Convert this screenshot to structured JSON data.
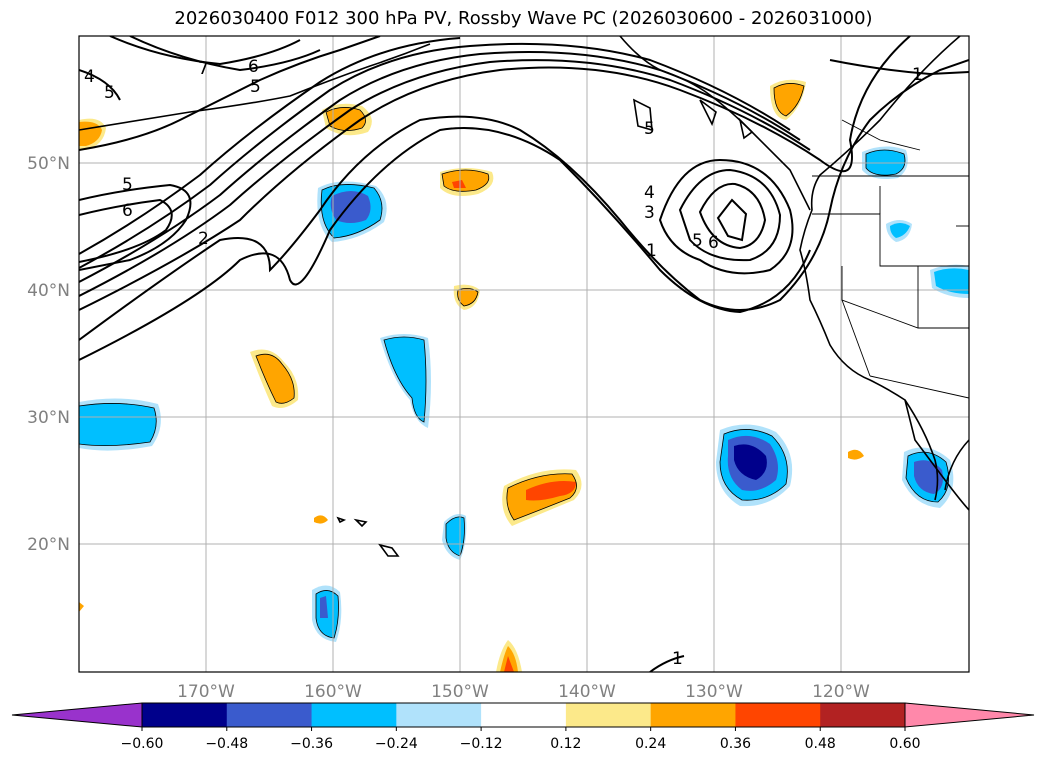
{
  "title": "2026030400 F012 300 hPa PV, Rossby Wave PC (2026030600 - 2026031000)",
  "map": {
    "lon_labels": [
      "170°W",
      "160°W",
      "150°W",
      "140°W",
      "130°W",
      "120°W"
    ],
    "lat_labels": [
      "50°N",
      "40°N",
      "30°N",
      "20°N"
    ],
    "contour_labels": [
      "7",
      "6",
      "5",
      "4",
      "5",
      "5",
      "6",
      "2",
      "4",
      "3",
      "1",
      "5",
      "6",
      "1",
      "1",
      "5"
    ]
  },
  "colorbar": {
    "ticks": [
      "−0.60",
      "−0.48",
      "−0.36",
      "−0.24",
      "−0.12",
      "0.12",
      "0.24",
      "0.36",
      "0.48",
      "0.60"
    ],
    "colors": [
      "#9932cc",
      "#00008b",
      "#3a5bcd",
      "#00bfff",
      "#b0e2fb",
      "#ffffff",
      "#fce98a",
      "#ffa500",
      "#ff4500",
      "#b22222",
      "#ff88aa"
    ]
  }
}
